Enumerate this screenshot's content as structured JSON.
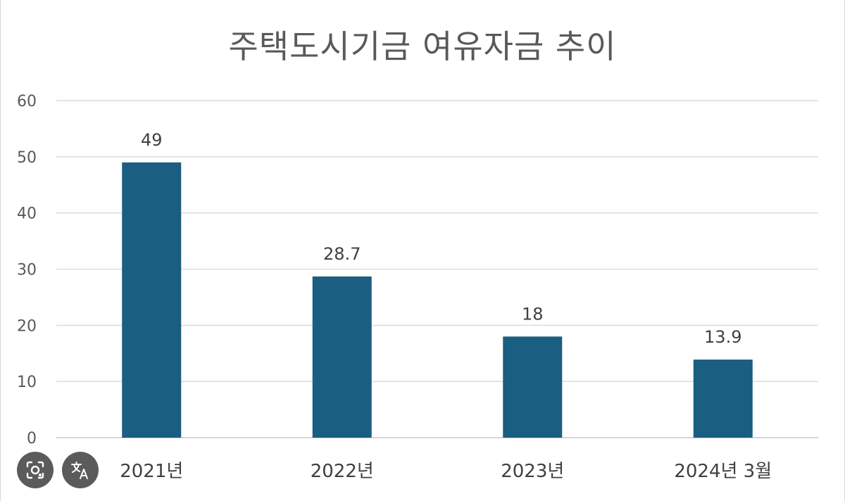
{
  "chart_data": {
    "type": "bar",
    "title": "주택도시기금 여유자금 추이",
    "categories": [
      "2021년",
      "2022년",
      "2023년",
      "2024년 3월"
    ],
    "values": [
      49,
      28.7,
      18,
      13.9
    ],
    "data_labels": [
      "49",
      "28.7",
      "18",
      "13.9"
    ],
    "ylim": [
      0,
      60
    ],
    "yticks": [
      0,
      10,
      20,
      30,
      40,
      50,
      60
    ],
    "grid": true,
    "bar_color": "#1a5e82"
  },
  "overlay": {
    "buttons": [
      {
        "icon": "lens-icon"
      },
      {
        "icon": "translate-icon"
      }
    ]
  }
}
